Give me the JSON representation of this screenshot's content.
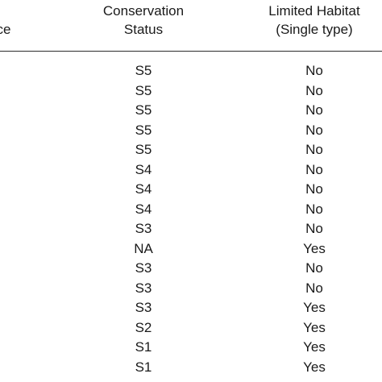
{
  "table": {
    "headers": {
      "left_col": {
        "line1": "e",
        "line2": "nce"
      },
      "conservation_status": {
        "line1": "Conservation",
        "line2": "Status"
      },
      "limited_habitat": {
        "line1": "Limited Habitat",
        "line2": "(Single type)"
      }
    },
    "rows": [
      {
        "status": "S5",
        "habitat": "No"
      },
      {
        "status": "S5",
        "habitat": "No"
      },
      {
        "status": "S5",
        "habitat": "No"
      },
      {
        "status": "S5",
        "habitat": "No"
      },
      {
        "status": "S5",
        "habitat": "No"
      },
      {
        "status": "S4",
        "habitat": "No"
      },
      {
        "status": "S4",
        "habitat": "No"
      },
      {
        "status": "S4",
        "habitat": "No"
      },
      {
        "status": "S3",
        "habitat": "No"
      },
      {
        "status": "NA",
        "habitat": "Yes"
      },
      {
        "status": "S3",
        "habitat": "No"
      },
      {
        "status": "S3",
        "habitat": "No"
      },
      {
        "status": "S3",
        "habitat": "Yes"
      },
      {
        "status": "S2",
        "habitat": "Yes"
      },
      {
        "status": "S1",
        "habitat": "Yes"
      },
      {
        "status": "S1",
        "habitat": "Yes"
      }
    ]
  }
}
